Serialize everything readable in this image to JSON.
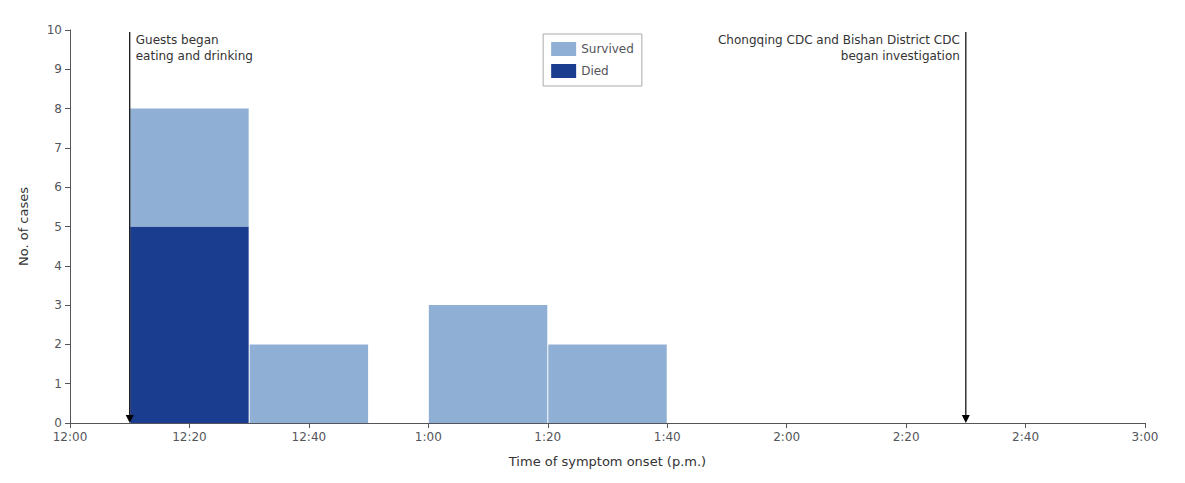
{
  "chart_data": {
    "type": "histogram",
    "xlabel": "Time of symptom onset (p.m.)",
    "ylabel": "No. of cases",
    "bins": [
      10,
      30,
      50,
      60,
      80,
      100
    ],
    "series": [
      {
        "name": "Died",
        "color": "#1a3d8f",
        "values": [
          5,
          0,
          0,
          0,
          0
        ]
      },
      {
        "name": "Survived",
        "color": "#8fafd4",
        "values": [
          3,
          2,
          0,
          3,
          2
        ]
      }
    ],
    "stacked": true,
    "xlim": [
      0,
      180
    ],
    "xticks": [
      {
        "value": 0,
        "label": "12:00"
      },
      {
        "value": 20,
        "label": "12:20"
      },
      {
        "value": 40,
        "label": "12:40"
      },
      {
        "value": 60,
        "label": "1:00"
      },
      {
        "value": 80,
        "label": "1:20"
      },
      {
        "value": 100,
        "label": "1:40"
      },
      {
        "value": 120,
        "label": "2:00"
      },
      {
        "value": 140,
        "label": "2:20"
      },
      {
        "value": 160,
        "label": "2:40"
      },
      {
        "value": 180,
        "label": "3:00"
      }
    ],
    "ylim": [
      0,
      10
    ],
    "yticks": [
      0,
      1,
      2,
      3,
      4,
      5,
      6,
      7,
      8,
      9,
      10
    ],
    "grid": false,
    "legend": "upper center",
    "annotations": [
      {
        "text": "Guests began\neating and drinking",
        "x": 10
      },
      {
        "text": "Chongqing CDC and Bishan District CDC\nbegan investigation",
        "x": 150
      }
    ]
  }
}
